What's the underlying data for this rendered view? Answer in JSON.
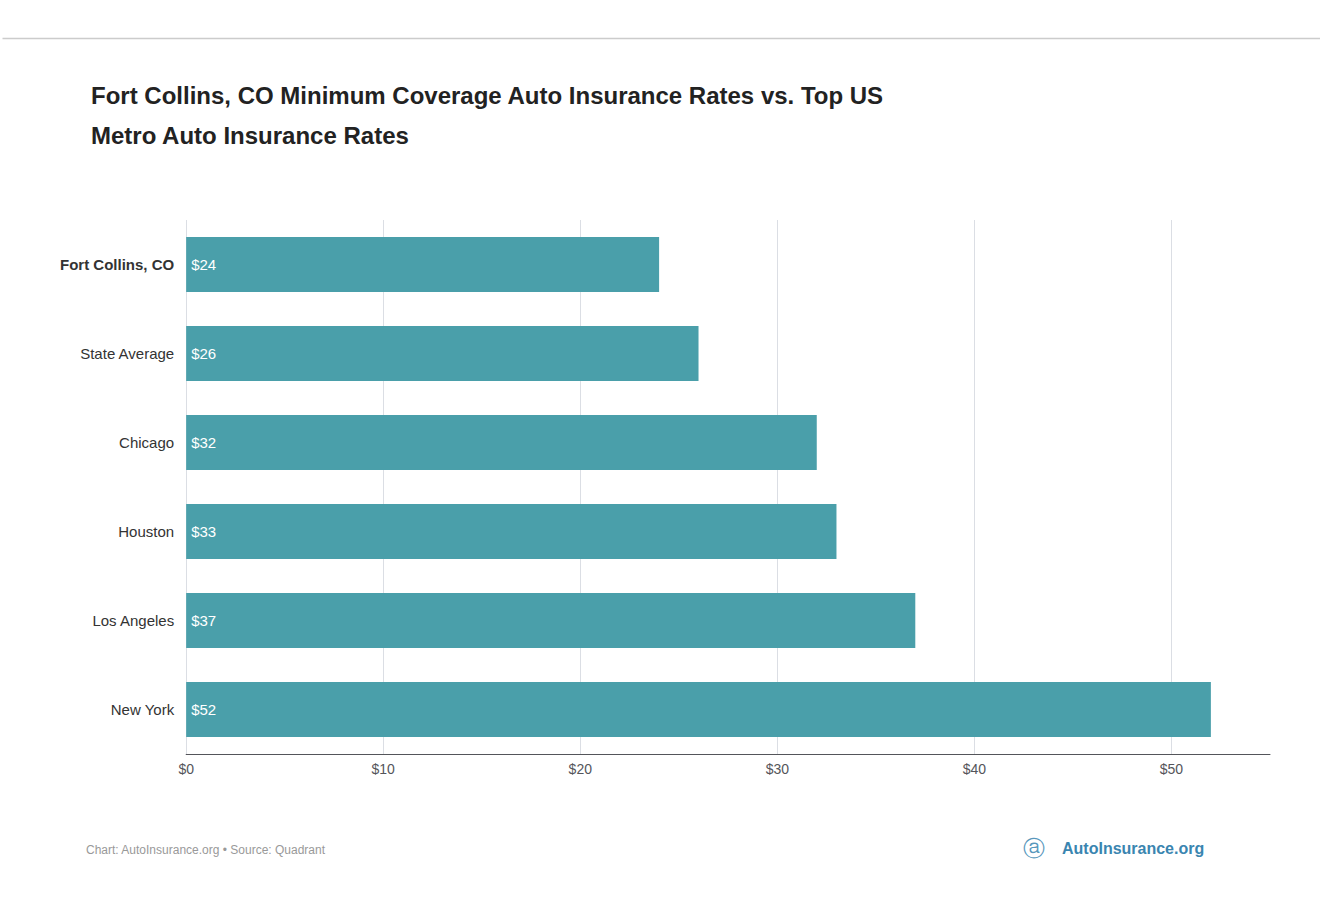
{
  "chart_data": {
    "type": "bar",
    "orientation": "horizontal",
    "title": "Fort Collins, CO Minimum Coverage Auto Insurance Rates vs. Top US\nMetro Auto Insurance Rates",
    "categories": [
      "Fort Collins, CO",
      "State Average",
      "Chicago",
      "Houston",
      "Los Angeles",
      "New York"
    ],
    "values": [
      24,
      26,
      32,
      33,
      37,
      52
    ],
    "value_labels": [
      "$24",
      "$26",
      "$32",
      "$33",
      "$37",
      "$52"
    ],
    "data_labels": true,
    "color": "#4a9faa",
    "xlim": [
      0,
      55
    ],
    "xticks": [
      {
        "value": 0,
        "label": "$0"
      },
      {
        "value": 10,
        "label": "$10"
      },
      {
        "value": 20,
        "label": "$20"
      },
      {
        "value": 30,
        "label": "$30"
      },
      {
        "value": 40,
        "label": "$40"
      },
      {
        "value": 50,
        "label": "$50"
      }
    ],
    "grid": true,
    "annotations": [
      "Chart: AutoInsurance.org • Source: Quadrant",
      "ⓐ",
      "AutoInsurance.org"
    ]
  }
}
